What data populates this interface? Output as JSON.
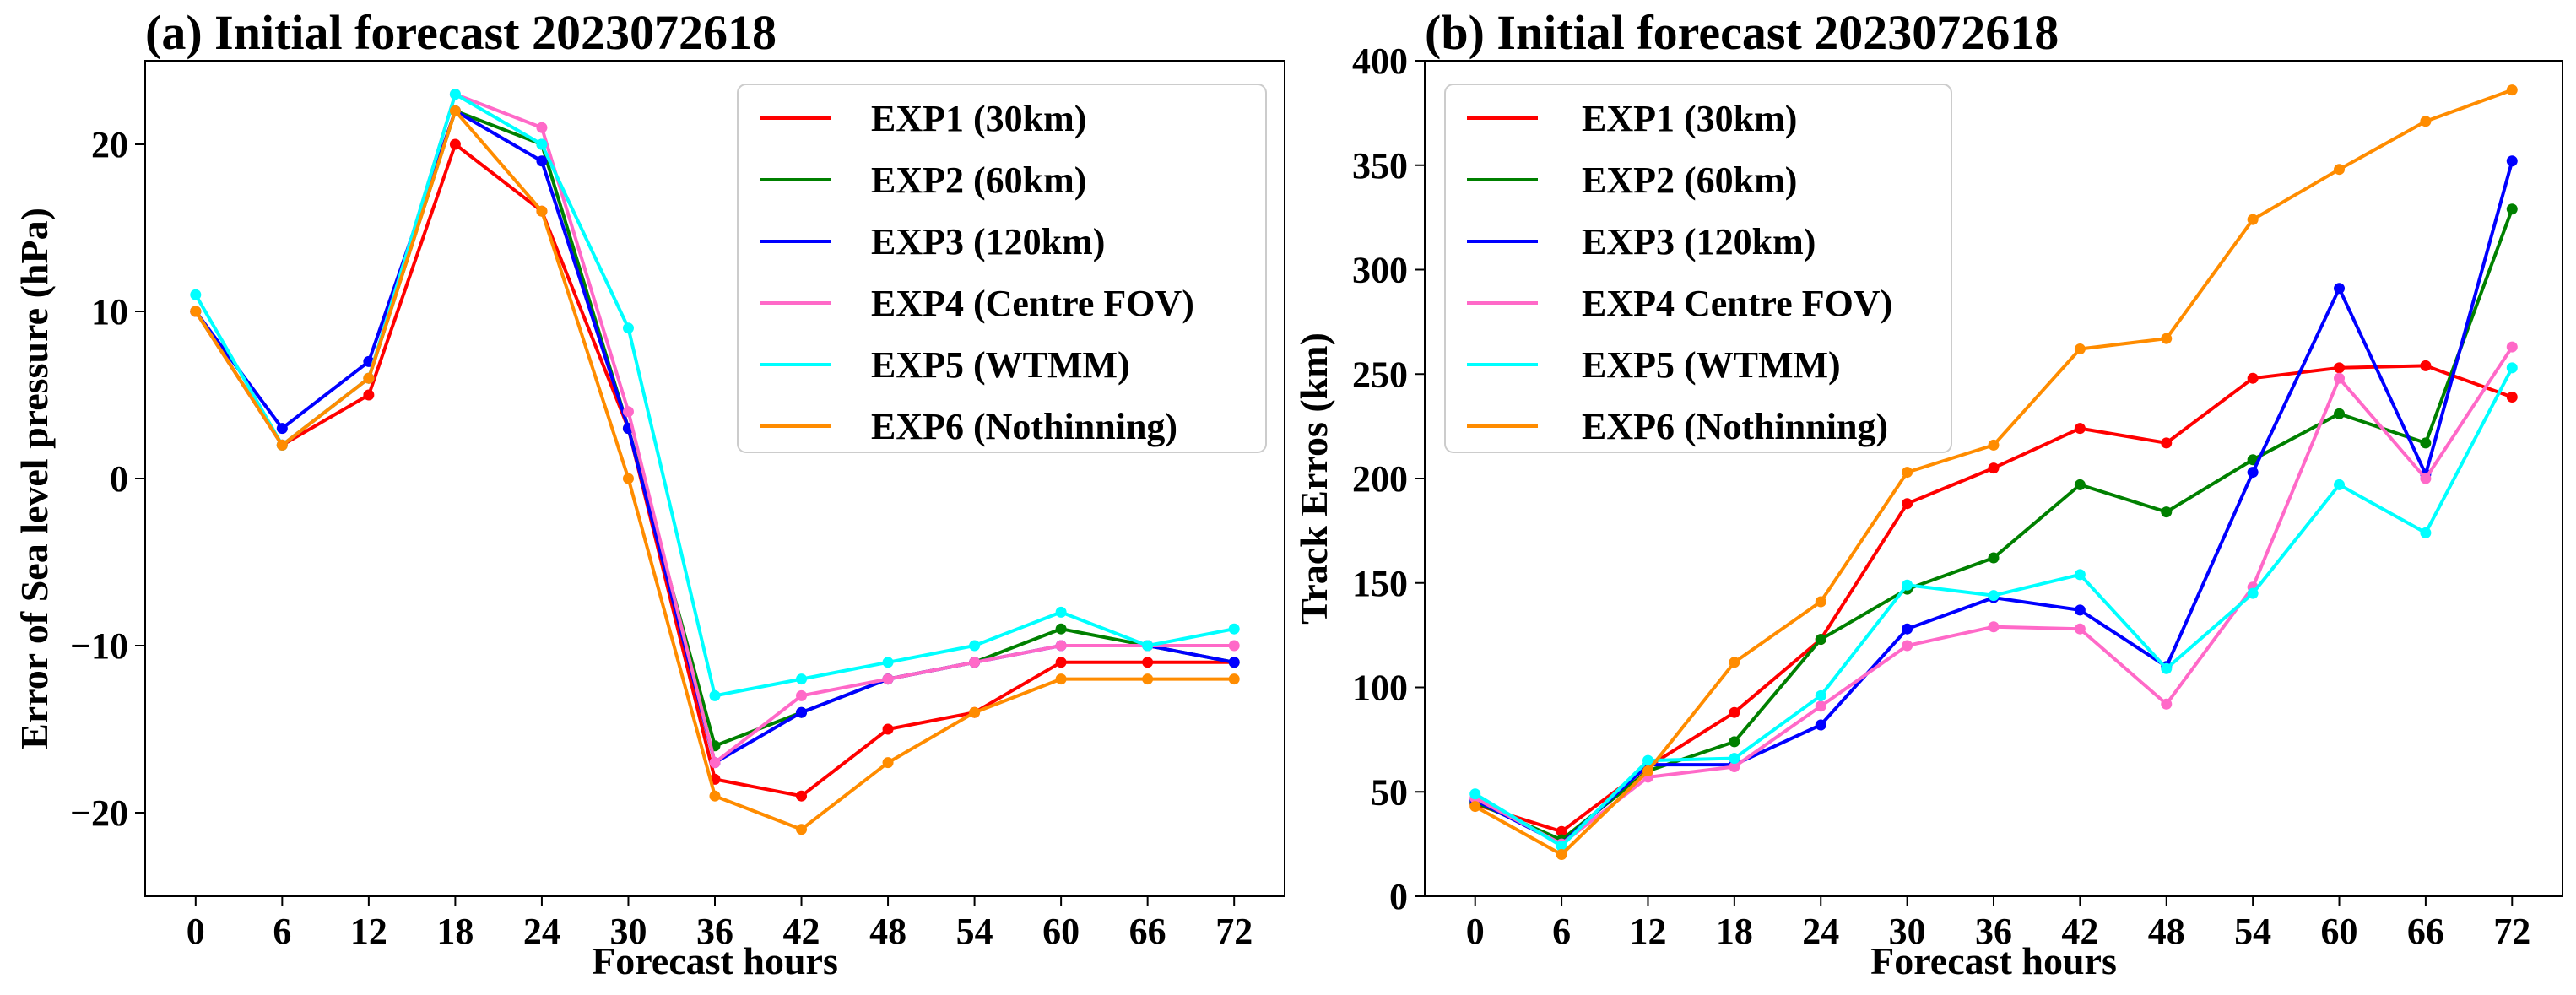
{
  "chart_data": [
    {
      "id": "a",
      "type": "line",
      "title": "(a) Initial forecast 2023072618",
      "xlabel": "Forecast hours",
      "ylabel": "Error of Sea level pressure (hPa)",
      "x": [
        0,
        6,
        12,
        18,
        24,
        30,
        36,
        42,
        48,
        54,
        60,
        66,
        72
      ],
      "xlim": [
        -3.5,
        75.5
      ],
      "ylim": [
        -25,
        25
      ],
      "xticks": [
        0,
        6,
        12,
        18,
        24,
        30,
        36,
        42,
        48,
        54,
        60,
        66,
        72
      ],
      "yticks": [
        -20,
        -10,
        0,
        10,
        20
      ],
      "grid": false,
      "legend_position": "top-right",
      "series": [
        {
          "name": "EXP1 (30km)",
          "color": "#ff0000",
          "values": [
            10,
            2,
            5,
            20,
            16,
            3,
            -18,
            -19,
            -15,
            -14,
            -11,
            -11,
            -11
          ]
        },
        {
          "name": "EXP2 (60km)",
          "color": "#008000",
          "values": [
            10,
            2,
            6,
            22,
            20,
            3,
            -16,
            -14,
            -12,
            -11,
            -9,
            -10,
            -11
          ]
        },
        {
          "name": "EXP3 (120km)",
          "color": "#0000ff",
          "values": [
            10,
            3,
            7,
            22,
            19,
            3,
            -17,
            -14,
            -12,
            -11,
            -10,
            -10,
            -11
          ]
        },
        {
          "name": "EXP4 (Centre FOV)",
          "color": "#ff69c8",
          "values": [
            10,
            2,
            6,
            23,
            21,
            4,
            -17,
            -13,
            -12,
            -11,
            -10,
            -10,
            -10
          ]
        },
        {
          "name": "EXP5 (WTMM)",
          "color": "#00ffff",
          "values": [
            11,
            2,
            6,
            23,
            20,
            9,
            -13,
            -12,
            -11,
            -10,
            -8,
            -10,
            -9
          ]
        },
        {
          "name": "EXP6 (Nothinning)",
          "color": "#ff8c00",
          "values": [
            10,
            2,
            6,
            22,
            16,
            0,
            -19,
            -21,
            -17,
            -14,
            -12,
            -12,
            -12
          ]
        }
      ]
    },
    {
      "id": "b",
      "type": "line",
      "title": "(b) Initial forecast 2023072618",
      "xlabel": "Forecast hours",
      "ylabel": "Track Erros (km)",
      "x": [
        0,
        6,
        12,
        18,
        24,
        30,
        36,
        42,
        48,
        54,
        60,
        66,
        72
      ],
      "xlim": [
        -3.5,
        75.5
      ],
      "ylim": [
        0,
        400
      ],
      "xticks": [
        0,
        6,
        12,
        18,
        24,
        30,
        36,
        42,
        48,
        54,
        60,
        66,
        72
      ],
      "yticks": [
        0,
        50,
        100,
        150,
        200,
        250,
        300,
        350,
        400
      ],
      "grid": false,
      "legend_position": "top-left",
      "series": [
        {
          "name": "EXP1 (30km)",
          "color": "#ff0000",
          "values": [
            44,
            31,
            62,
            88,
            123,
            188,
            205,
            224,
            217,
            248,
            253,
            254,
            239
          ]
        },
        {
          "name": "EXP2 (60km)",
          "color": "#008000",
          "values": [
            45,
            27,
            60,
            74,
            123,
            147,
            162,
            197,
            184,
            209,
            231,
            217,
            329
          ]
        },
        {
          "name": "EXP3 (120km)",
          "color": "#0000ff",
          "values": [
            46,
            25,
            63,
            63,
            82,
            128,
            143,
            137,
            110,
            203,
            291,
            202,
            352
          ]
        },
        {
          "name": "EXP4 Centre FOV)",
          "color": "#ff69c8",
          "values": [
            47,
            25,
            57,
            62,
            91,
            120,
            129,
            128,
            92,
            148,
            248,
            200,
            263
          ]
        },
        {
          "name": "EXP5 (WTMM)",
          "color": "#00ffff",
          "values": [
            49,
            24,
            65,
            66,
            96,
            149,
            144,
            154,
            109,
            145,
            197,
            174,
            253
          ]
        },
        {
          "name": "EXP6 (Nothinning)",
          "color": "#ff8c00",
          "values": [
            43,
            20,
            60,
            112,
            141,
            203,
            216,
            262,
            267,
            324,
            348,
            371,
            386
          ]
        }
      ]
    }
  ]
}
